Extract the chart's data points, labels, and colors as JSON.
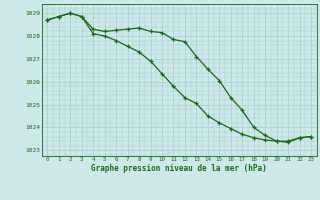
{
  "line1": [
    1028.7,
    1028.85,
    1029.0,
    1028.85,
    1028.3,
    1028.2,
    1028.25,
    1028.3,
    1028.35,
    1028.2,
    1028.15,
    1027.85,
    1027.75,
    1027.1,
    1026.55,
    1026.05,
    1025.3,
    1024.75,
    1024.0,
    1023.65,
    1023.4,
    1023.4,
    1023.55,
    1023.6
  ],
  "line2": [
    1028.7,
    1028.85,
    1029.0,
    1028.85,
    1028.1,
    1028.0,
    1027.8,
    1027.55,
    1027.3,
    1026.9,
    1026.35,
    1025.8,
    1025.3,
    1025.05,
    1024.5,
    1024.2,
    1023.95,
    1023.7,
    1023.55,
    1023.45,
    1023.4,
    1023.35,
    1023.55,
    1023.6
  ],
  "hours": [
    0,
    1,
    2,
    3,
    4,
    5,
    6,
    7,
    8,
    9,
    10,
    11,
    12,
    13,
    14,
    15,
    16,
    17,
    18,
    19,
    20,
    21,
    22,
    23
  ],
  "ylim_min": 1022.75,
  "ylim_max": 1029.4,
  "yticks": [
    1023,
    1024,
    1025,
    1026,
    1027,
    1028,
    1029
  ],
  "line_color": "#1a6b1a",
  "bg_color": "#cce8e8",
  "grid_color": "#aacece",
  "xlabel": "Graphe pression niveau de la mer (hPa)"
}
